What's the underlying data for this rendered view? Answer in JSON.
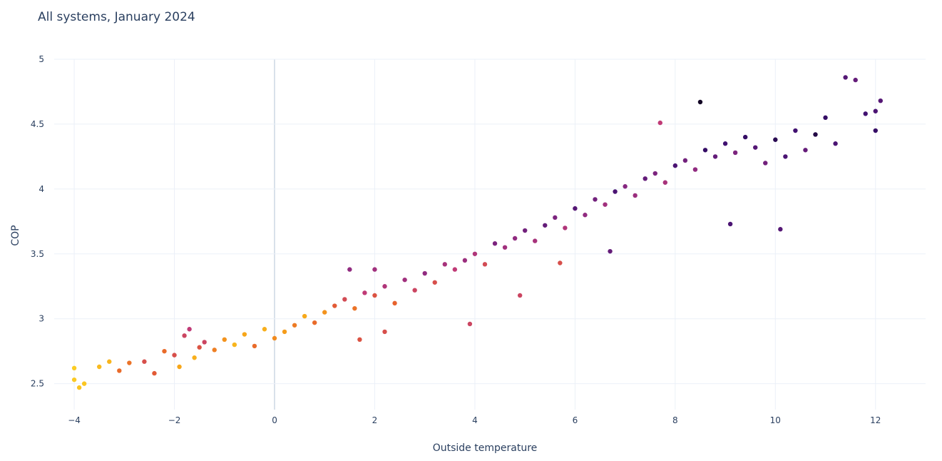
{
  "chart_data": {
    "type": "scatter",
    "title": "All systems, January 2024",
    "xlabel": "Outside temperature",
    "ylabel": "COP",
    "xlim": [
      -4.4,
      13.0
    ],
    "ylim": [
      2.3,
      5.0
    ],
    "x_ticks": [
      -4,
      -2,
      0,
      2,
      4,
      6,
      8,
      10,
      12
    ],
    "x_tick_labels": [
      "−4",
      "−2",
      "0",
      "2",
      "4",
      "6",
      "8",
      "10",
      "12"
    ],
    "y_ticks": [
      2.5,
      3,
      3.5,
      4,
      4.5,
      5
    ],
    "y_tick_labels": [
      "2.5",
      "3",
      "3.5",
      "4",
      "4.5",
      "5"
    ],
    "grid": true,
    "legend": "none",
    "colorscale": "inferno",
    "colorscale_stops": [
      "#000004",
      "#3b0f70",
      "#8c2981",
      "#c03a76",
      "#e65d2f",
      "#f6a118",
      "#fcd225"
    ],
    "points": [
      {
        "x": -4.0,
        "y": 2.53,
        "c": 0.97
      },
      {
        "x": -3.9,
        "y": 2.47,
        "c": 0.95
      },
      {
        "x": -4.0,
        "y": 2.62,
        "c": 0.98
      },
      {
        "x": -3.8,
        "y": 2.5,
        "c": 0.96
      },
      {
        "x": -3.5,
        "y": 2.63,
        "c": 0.92
      },
      {
        "x": -3.3,
        "y": 2.67,
        "c": 0.9
      },
      {
        "x": -3.1,
        "y": 2.6,
        "c": 0.7
      },
      {
        "x": -2.9,
        "y": 2.66,
        "c": 0.72
      },
      {
        "x": -2.6,
        "y": 2.67,
        "c": 0.6
      },
      {
        "x": -2.4,
        "y": 2.58,
        "c": 0.65
      },
      {
        "x": -2.2,
        "y": 2.75,
        "c": 0.7
      },
      {
        "x": -2.0,
        "y": 2.72,
        "c": 0.6
      },
      {
        "x": -1.9,
        "y": 2.63,
        "c": 0.85
      },
      {
        "x": -1.8,
        "y": 2.87,
        "c": 0.55
      },
      {
        "x": -1.7,
        "y": 2.92,
        "c": 0.5
      },
      {
        "x": -1.6,
        "y": 2.7,
        "c": 0.88
      },
      {
        "x": -1.5,
        "y": 2.78,
        "c": 0.62
      },
      {
        "x": -1.4,
        "y": 2.82,
        "c": 0.55
      },
      {
        "x": -1.2,
        "y": 2.76,
        "c": 0.75
      },
      {
        "x": -1.0,
        "y": 2.84,
        "c": 0.8
      },
      {
        "x": -0.8,
        "y": 2.8,
        "c": 0.9
      },
      {
        "x": -0.6,
        "y": 2.88,
        "c": 0.85
      },
      {
        "x": -0.4,
        "y": 2.79,
        "c": 0.7
      },
      {
        "x": -0.2,
        "y": 2.92,
        "c": 0.88
      },
      {
        "x": 0.0,
        "y": 2.85,
        "c": 0.78
      },
      {
        "x": 0.2,
        "y": 2.9,
        "c": 0.82
      },
      {
        "x": 0.4,
        "y": 2.95,
        "c": 0.74
      },
      {
        "x": 0.6,
        "y": 3.02,
        "c": 0.86
      },
      {
        "x": 0.8,
        "y": 2.97,
        "c": 0.7
      },
      {
        "x": 1.0,
        "y": 3.05,
        "c": 0.8
      },
      {
        "x": 1.2,
        "y": 3.1,
        "c": 0.65
      },
      {
        "x": 1.4,
        "y": 3.15,
        "c": 0.58
      },
      {
        "x": 1.6,
        "y": 3.08,
        "c": 0.72
      },
      {
        "x": 1.8,
        "y": 3.2,
        "c": 0.5
      },
      {
        "x": 2.0,
        "y": 3.18,
        "c": 0.62
      },
      {
        "x": 2.2,
        "y": 3.25,
        "c": 0.45
      },
      {
        "x": 2.4,
        "y": 3.12,
        "c": 0.68
      },
      {
        "x": 2.6,
        "y": 3.3,
        "c": 0.4
      },
      {
        "x": 2.8,
        "y": 3.22,
        "c": 0.55
      },
      {
        "x": 3.0,
        "y": 3.35,
        "c": 0.35
      },
      {
        "x": 3.2,
        "y": 3.28,
        "c": 0.6
      },
      {
        "x": 3.4,
        "y": 3.42,
        "c": 0.42
      },
      {
        "x": 3.6,
        "y": 3.38,
        "c": 0.5
      },
      {
        "x": 3.8,
        "y": 3.45,
        "c": 0.38
      },
      {
        "x": 4.0,
        "y": 3.5,
        "c": 0.45
      },
      {
        "x": 4.2,
        "y": 3.42,
        "c": 0.58
      },
      {
        "x": 4.4,
        "y": 3.58,
        "c": 0.3
      },
      {
        "x": 4.6,
        "y": 3.55,
        "c": 0.4
      },
      {
        "x": 4.8,
        "y": 3.62,
        "c": 0.35
      },
      {
        "x": 5.0,
        "y": 3.68,
        "c": 0.28
      },
      {
        "x": 5.2,
        "y": 3.6,
        "c": 0.42
      },
      {
        "x": 5.4,
        "y": 3.72,
        "c": 0.25
      },
      {
        "x": 5.6,
        "y": 3.78,
        "c": 0.3
      },
      {
        "x": 5.8,
        "y": 3.7,
        "c": 0.45
      },
      {
        "x": 6.0,
        "y": 3.85,
        "c": 0.22
      },
      {
        "x": 6.2,
        "y": 3.8,
        "c": 0.35
      },
      {
        "x": 6.4,
        "y": 3.92,
        "c": 0.28
      },
      {
        "x": 6.6,
        "y": 3.88,
        "c": 0.4
      },
      {
        "x": 6.8,
        "y": 3.98,
        "c": 0.2
      },
      {
        "x": 7.0,
        "y": 4.02,
        "c": 0.32
      },
      {
        "x": 7.2,
        "y": 3.95,
        "c": 0.38
      },
      {
        "x": 7.4,
        "y": 4.08,
        "c": 0.25
      },
      {
        "x": 7.6,
        "y": 4.12,
        "c": 0.3
      },
      {
        "x": 7.8,
        "y": 4.05,
        "c": 0.42
      },
      {
        "x": 8.0,
        "y": 4.18,
        "c": 0.2
      },
      {
        "x": 8.2,
        "y": 4.22,
        "c": 0.28
      },
      {
        "x": 8.4,
        "y": 4.15,
        "c": 0.35
      },
      {
        "x": 8.5,
        "y": 4.67,
        "c": 0.05
      },
      {
        "x": 8.6,
        "y": 4.3,
        "c": 0.15
      },
      {
        "x": 8.8,
        "y": 4.25,
        "c": 0.25
      },
      {
        "x": 9.0,
        "y": 4.35,
        "c": 0.18
      },
      {
        "x": 9.2,
        "y": 4.28,
        "c": 0.3
      },
      {
        "x": 9.4,
        "y": 4.4,
        "c": 0.15
      },
      {
        "x": 9.6,
        "y": 4.32,
        "c": 0.22
      },
      {
        "x": 9.8,
        "y": 4.2,
        "c": 0.28
      },
      {
        "x": 10.0,
        "y": 4.38,
        "c": 0.12
      },
      {
        "x": 10.2,
        "y": 4.25,
        "c": 0.2
      },
      {
        "x": 10.4,
        "y": 4.45,
        "c": 0.18
      },
      {
        "x": 10.6,
        "y": 4.3,
        "c": 0.25
      },
      {
        "x": 10.8,
        "y": 4.42,
        "c": 0.1
      },
      {
        "x": 11.0,
        "y": 4.55,
        "c": 0.15
      },
      {
        "x": 11.2,
        "y": 4.35,
        "c": 0.2
      },
      {
        "x": 11.4,
        "y": 4.86,
        "c": 0.22
      },
      {
        "x": 11.6,
        "y": 4.84,
        "c": 0.25
      },
      {
        "x": 11.8,
        "y": 4.58,
        "c": 0.18
      },
      {
        "x": 12.0,
        "y": 4.6,
        "c": 0.2
      },
      {
        "x": 12.1,
        "y": 4.68,
        "c": 0.22
      },
      {
        "x": 12.0,
        "y": 4.45,
        "c": 0.15
      },
      {
        "x": 10.1,
        "y": 3.69,
        "c": 0.22
      },
      {
        "x": 9.1,
        "y": 3.73,
        "c": 0.2
      },
      {
        "x": 7.7,
        "y": 4.51,
        "c": 0.5
      },
      {
        "x": 6.7,
        "y": 3.52,
        "c": 0.25
      },
      {
        "x": 5.7,
        "y": 3.43,
        "c": 0.6
      },
      {
        "x": 4.9,
        "y": 3.18,
        "c": 0.55
      },
      {
        "x": 3.9,
        "y": 2.96,
        "c": 0.55
      },
      {
        "x": 2.2,
        "y": 2.9,
        "c": 0.6
      },
      {
        "x": 1.7,
        "y": 2.84,
        "c": 0.62
      },
      {
        "x": 1.5,
        "y": 3.38,
        "c": 0.35
      },
      {
        "x": 2.0,
        "y": 3.38,
        "c": 0.4
      }
    ]
  }
}
